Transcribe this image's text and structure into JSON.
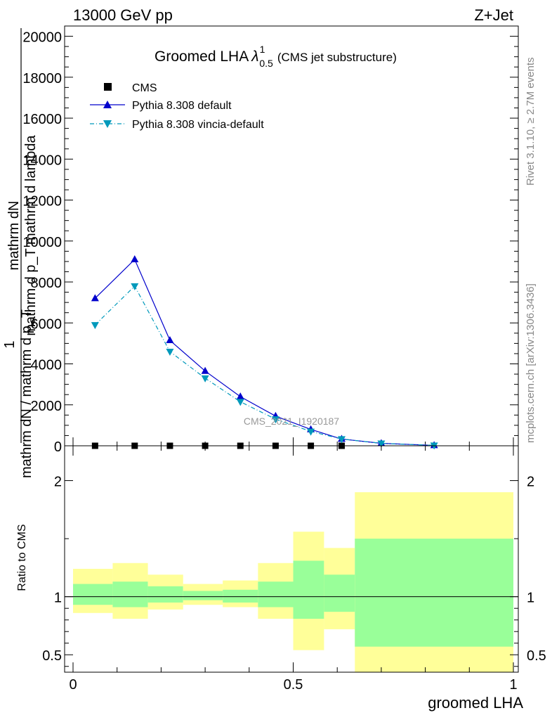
{
  "header": {
    "energy_label": "13000 GeV pp",
    "process_label": "Z+Jet"
  },
  "side_labels": {
    "rivet": "Rivet 3.1.10, ≥ 2.7M events",
    "mcplots": "mcplots.cern.ch [arXiv:1306.3436]"
  },
  "watermark": "CMS_2021_I1920187",
  "chart_data": [
    {
      "type": "line",
      "title_main": "Groomed LHA",
      "title_symbol": "λ",
      "title_sup": "1",
      "title_sub": "0.5",
      "title_tail": "(CMS jet substructure)",
      "ylabel_top_numer": "mathrm dN",
      "ylabel_top_denom": "mathrm d p_T mathrm d lambda",
      "ylabel_one": "1",
      "ylabel_bottom": "mathrm dN / mathrm d p_T",
      "xlim": [
        0,
        1
      ],
      "ylim": [
        0,
        20500
      ],
      "y_ticks": [
        {
          "value": 0,
          "label": "0"
        },
        {
          "value": 2000,
          "label": "2000"
        },
        {
          "value": 4000,
          "label": "4000"
        },
        {
          "value": 6000,
          "label": "6000"
        },
        {
          "value": 8000,
          "label": "8000"
        },
        {
          "value": 10000,
          "label": "10000"
        },
        {
          "value": 12000,
          "label": "12000"
        },
        {
          "value": 14000,
          "label": "14000"
        },
        {
          "value": 16000,
          "label": "16000"
        },
        {
          "value": 18000,
          "label": "18000"
        },
        {
          "value": 20000,
          "label": "20000"
        }
      ],
      "legend_position": "top-left",
      "series": [
        {
          "name": "CMS",
          "color": "#000000",
          "marker": "square",
          "x": [
            0.05,
            0.14,
            0.22,
            0.3,
            0.38,
            0.46,
            0.54,
            0.61
          ],
          "y": [
            0,
            0,
            0,
            0,
            0,
            0,
            0,
            0
          ]
        },
        {
          "name": "Pythia 8.308 default",
          "color": "#0000cc",
          "marker": "triangle-up",
          "x": [
            0.05,
            0.14,
            0.22,
            0.3,
            0.38,
            0.46,
            0.54,
            0.61,
            0.7,
            0.82
          ],
          "y": [
            7200,
            9100,
            5150,
            3650,
            2400,
            1450,
            800,
            330,
            120,
            20
          ]
        },
        {
          "name": "Pythia 8.308 vincia-default",
          "color": "#0099bb",
          "marker": "triangle-down",
          "x": [
            0.05,
            0.14,
            0.22,
            0.3,
            0.38,
            0.46,
            0.54,
            0.61,
            0.7,
            0.82
          ],
          "y": [
            5900,
            7800,
            4600,
            3300,
            2150,
            1300,
            700,
            330,
            120,
            20
          ]
        }
      ]
    },
    {
      "type": "area",
      "ylabel": "Ratio to CMS",
      "xlabel": "groomed LHA",
      "xlim": [
        0,
        1
      ],
      "ylim": [
        0.35,
        2.3
      ],
      "y_ticks": [
        {
          "value": 0.5,
          "label": "0.5"
        },
        {
          "value": 1,
          "label": "1"
        },
        {
          "value": 2,
          "label": "2"
        }
      ],
      "x_ticks": [
        {
          "value": 0,
          "label": "0"
        },
        {
          "value": 0.5,
          "label": "0.5"
        },
        {
          "value": 1,
          "label": "1"
        }
      ],
      "reference_line": 1,
      "bands": {
        "inner_color": "#99ff99",
        "outer_color": "#ffff99",
        "bins": [
          {
            "lo": 0.0,
            "hi": 0.09,
            "inner": [
              0.93,
              1.11
            ],
            "outer": [
              0.86,
              1.24
            ]
          },
          {
            "lo": 0.09,
            "hi": 0.17,
            "inner": [
              0.91,
              1.13
            ],
            "outer": [
              0.81,
              1.29
            ]
          },
          {
            "lo": 0.17,
            "hi": 0.25,
            "inner": [
              0.95,
              1.09
            ],
            "outer": [
              0.89,
              1.19
            ]
          },
          {
            "lo": 0.25,
            "hi": 0.34,
            "inner": [
              0.97,
              1.05
            ],
            "outer": [
              0.93,
              1.11
            ]
          },
          {
            "lo": 0.34,
            "hi": 0.42,
            "inner": [
              0.95,
              1.06
            ],
            "outer": [
              0.91,
              1.14
            ]
          },
          {
            "lo": 0.42,
            "hi": 0.5,
            "inner": [
              0.91,
              1.13
            ],
            "outer": [
              0.81,
              1.29
            ]
          },
          {
            "lo": 0.5,
            "hi": 0.57,
            "inner": [
              0.81,
              1.31
            ],
            "outer": [
              0.54,
              1.56
            ]
          },
          {
            "lo": 0.57,
            "hi": 0.64,
            "inner": [
              0.87,
              1.19
            ],
            "outer": [
              0.72,
              1.42
            ]
          },
          {
            "lo": 0.64,
            "hi": 1.0,
            "inner": [
              0.57,
              1.5
            ],
            "outer": [
              0.35,
              1.9
            ]
          }
        ]
      }
    }
  ]
}
